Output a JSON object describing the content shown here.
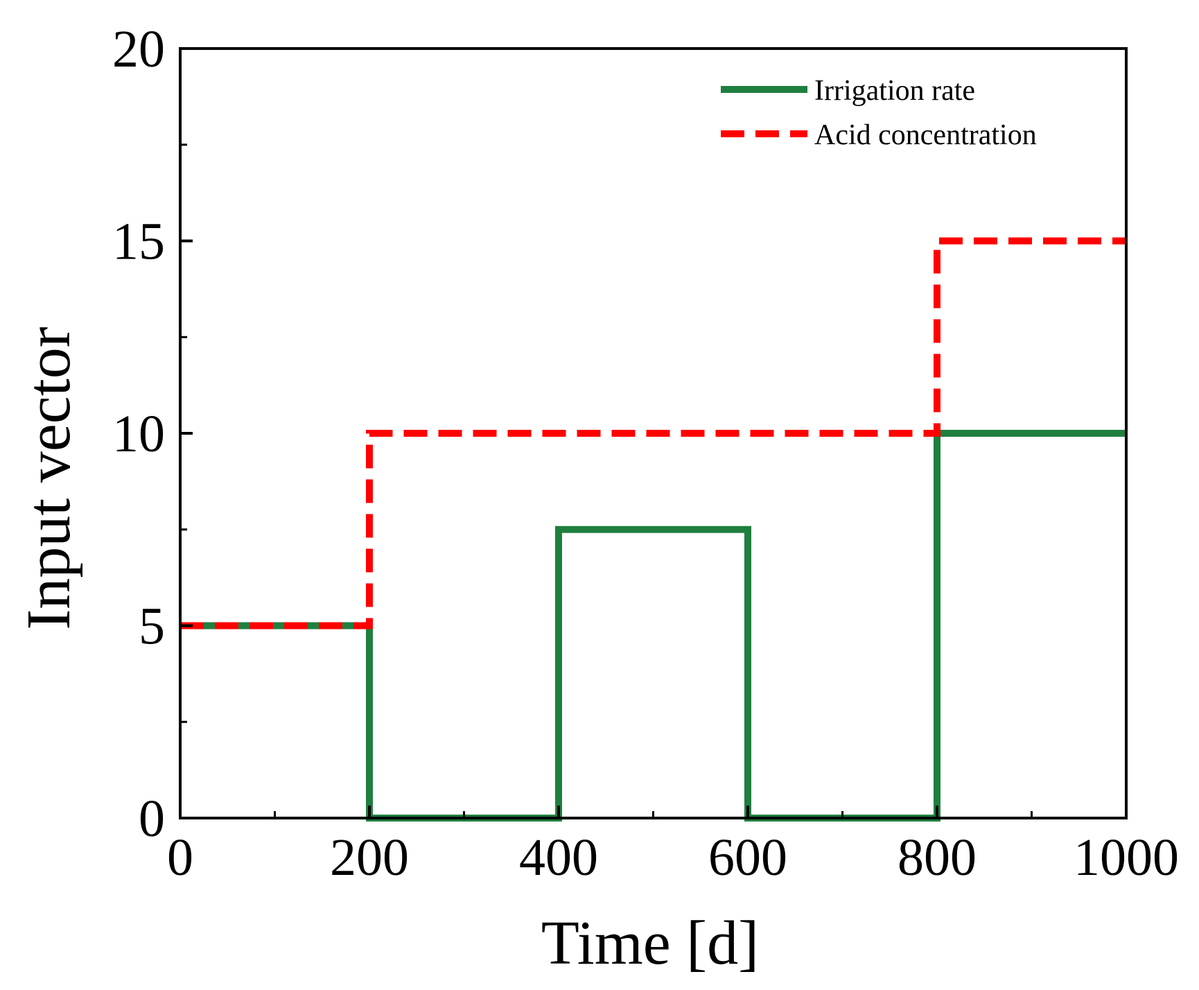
{
  "chart_data": {
    "type": "line",
    "title": "",
    "xlabel": "Time [d]",
    "ylabel": "Input vector",
    "xlim": [
      0,
      1000
    ],
    "ylim": [
      0,
      20
    ],
    "x_ticks": [
      0,
      200,
      400,
      600,
      800,
      1000
    ],
    "x_tick_labels": [
      "0",
      "200",
      "400",
      "600",
      "800",
      "1000"
    ],
    "x_minor_ticks": [
      100,
      300,
      500,
      700,
      900
    ],
    "y_ticks": [
      0,
      5,
      10,
      15,
      20
    ],
    "y_tick_labels": [
      "0",
      "5",
      "10",
      "15",
      "20"
    ],
    "y_minor_ticks": [
      2.5,
      7.5,
      12.5,
      17.5
    ],
    "grid": false,
    "legend_position": "top-right",
    "series": [
      {
        "name": "Irrigation rate",
        "color": "#1f7f3f",
        "style": "solid",
        "step": true,
        "x": [
          0,
          200,
          200,
          400,
          400,
          600,
          600,
          800,
          800,
          1000
        ],
        "y": [
          5,
          5,
          0,
          0,
          7.5,
          7.5,
          0,
          0,
          10,
          10
        ]
      },
      {
        "name": "Acid concentration",
        "color": "#ff0000",
        "style": "dashed",
        "step": true,
        "x": [
          0,
          200,
          200,
          800,
          800,
          1000
        ],
        "y": [
          5,
          5,
          10,
          10,
          15,
          15
        ]
      }
    ]
  }
}
